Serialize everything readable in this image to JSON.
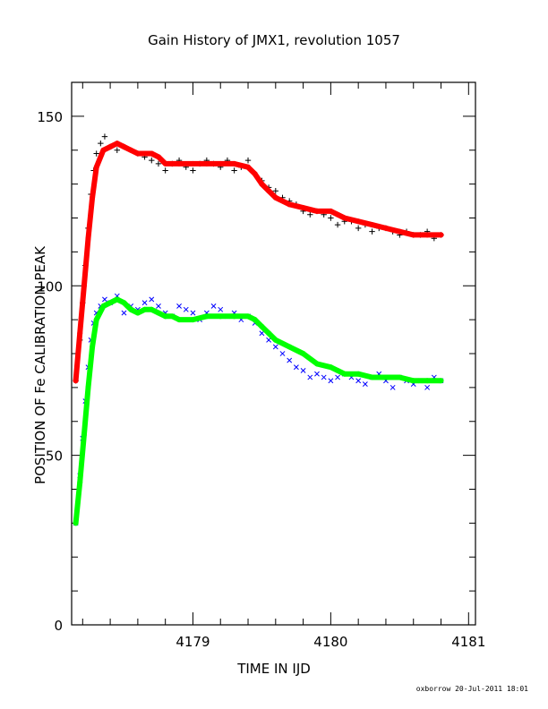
{
  "chart_data": {
    "type": "scatter",
    "title": "Gain History of JMX1, revolution 1057",
    "xlabel": "TIME IN IJD",
    "ylabel": "POSITION OF Fe CALIBRATION PEAK",
    "xlim": [
      4178.12,
      4181.05
    ],
    "ylim": [
      0,
      160
    ],
    "xticks": [
      "4179",
      "4180",
      "4181"
    ],
    "yticks": [
      "0",
      "50",
      "100",
      "150"
    ],
    "grid": false,
    "colors": {
      "upper_points": "#000000",
      "upper_smooth": "#ff0000",
      "lower_points": "#0000ff",
      "lower_smooth": "#00ff00"
    },
    "series": [
      {
        "marker": "plus",
        "x": [
          4178.15,
          4178.18,
          4178.2,
          4178.22,
          4178.24,
          4178.26,
          4178.28,
          4178.3,
          4178.33,
          4178.36,
          4178.4,
          4178.45,
          4178.5,
          4178.55,
          4178.6,
          4178.65,
          4178.7,
          4178.75,
          4178.8,
          4178.85,
          4178.9,
          4178.95,
          4179.0,
          4179.05,
          4179.1,
          4179.15,
          4179.2,
          4179.25,
          4179.3,
          4179.35,
          4179.4,
          4179.45,
          4179.5,
          4179.55,
          4179.6,
          4179.65,
          4179.7,
          4179.75,
          4179.8,
          4179.85,
          4179.9,
          4179.95,
          4180.0,
          4180.05,
          4180.1,
          4180.15,
          4180.2,
          4180.25,
          4180.3,
          4180.35,
          4180.4,
          4180.45,
          4180.5,
          4180.55,
          4180.6,
          4180.65,
          4180.7,
          4180.75,
          4180.8
        ],
        "y": [
          72,
          84,
          95,
          106,
          117,
          127,
          134,
          139,
          142,
          144,
          141,
          140,
          141,
          140,
          139,
          138,
          137,
          136,
          134,
          136,
          137,
          135,
          134,
          136,
          137,
          136,
          135,
          137,
          134,
          135,
          137,
          133,
          131,
          129,
          128,
          126,
          125,
          124,
          122,
          121,
          122,
          121,
          120,
          118,
          119,
          119,
          117,
          118,
          116,
          117,
          117,
          116,
          115,
          116,
          115,
          115,
          116,
          114,
          115
        ]
      },
      {
        "marker": "smooth",
        "x": [
          4178.15,
          4178.18,
          4178.21,
          4178.24,
          4178.27,
          4178.3,
          4178.35,
          4178.4,
          4178.45,
          4178.5,
          4178.55,
          4178.6,
          4178.65,
          4178.7,
          4178.75,
          4178.8,
          4178.85,
          4178.9,
          4179.0,
          4179.1,
          4179.2,
          4179.3,
          4179.4,
          4179.45,
          4179.5,
          4179.55,
          4179.6,
          4179.7,
          4179.8,
          4179.9,
          4180.0,
          4180.05,
          4180.1,
          4180.2,
          4180.3,
          4180.4,
          4180.5,
          4180.6,
          4180.7,
          4180.8
        ],
        "y": [
          72,
          86,
          100,
          114,
          126,
          135,
          140,
          141,
          142,
          141,
          140,
          139,
          139,
          139,
          138,
          136,
          136,
          136,
          136,
          136,
          136,
          136,
          135,
          133,
          130,
          128,
          126,
          124,
          123,
          122,
          122,
          121,
          120,
          119,
          118,
          117,
          116,
          115,
          115,
          115
        ]
      },
      {
        "marker": "cross",
        "x": [
          4178.15,
          4178.18,
          4178.2,
          4178.22,
          4178.24,
          4178.26,
          4178.28,
          4178.3,
          4178.33,
          4178.36,
          4178.4,
          4178.45,
          4178.5,
          4178.55,
          4178.6,
          4178.65,
          4178.7,
          4178.75,
          4178.8,
          4178.85,
          4178.9,
          4178.95,
          4179.0,
          4179.05,
          4179.1,
          4179.15,
          4179.2,
          4179.25,
          4179.3,
          4179.35,
          4179.4,
          4179.45,
          4179.5,
          4179.55,
          4179.6,
          4179.65,
          4179.7,
          4179.75,
          4179.8,
          4179.85,
          4179.9,
          4179.95,
          4180.0,
          4180.05,
          4180.1,
          4180.15,
          4180.2,
          4180.25,
          4180.3,
          4180.35,
          4180.4,
          4180.45,
          4180.5,
          4180.55,
          4180.6,
          4180.65,
          4180.7,
          4180.75,
          4180.8
        ],
        "y": [
          30,
          44,
          55,
          66,
          76,
          84,
          89,
          92,
          94,
          96,
          95,
          97,
          92,
          94,
          93,
          95,
          96,
          94,
          92,
          91,
          94,
          93,
          92,
          90,
          92,
          94,
          93,
          91,
          92,
          90,
          91,
          89,
          86,
          84,
          82,
          80,
          78,
          76,
          75,
          73,
          74,
          73,
          72,
          73,
          74,
          73,
          72,
          71,
          73,
          74,
          72,
          70,
          73,
          72,
          71,
          72,
          70,
          73,
          72
        ]
      },
      {
        "marker": "smooth",
        "x": [
          4178.15,
          4178.18,
          4178.21,
          4178.24,
          4178.27,
          4178.3,
          4178.35,
          4178.4,
          4178.45,
          4178.5,
          4178.55,
          4178.6,
          4178.65,
          4178.7,
          4178.75,
          4178.8,
          4178.85,
          4178.9,
          4179.0,
          4179.1,
          4179.2,
          4179.3,
          4179.4,
          4179.45,
          4179.5,
          4179.55,
          4179.6,
          4179.7,
          4179.8,
          4179.9,
          4180.0,
          4180.05,
          4180.1,
          4180.2,
          4180.3,
          4180.4,
          4180.5,
          4180.6,
          4180.7,
          4180.8
        ],
        "y": [
          30,
          42,
          56,
          70,
          82,
          90,
          94,
          95,
          96,
          95,
          93,
          92,
          93,
          93,
          92,
          91,
          91,
          90,
          90,
          91,
          91,
          91,
          91,
          90,
          88,
          86,
          84,
          82,
          80,
          77,
          76,
          75,
          74,
          74,
          73,
          73,
          73,
          72,
          72,
          72
        ]
      }
    ]
  },
  "footer": "oxborrow 20-Jul-2011 18:01"
}
